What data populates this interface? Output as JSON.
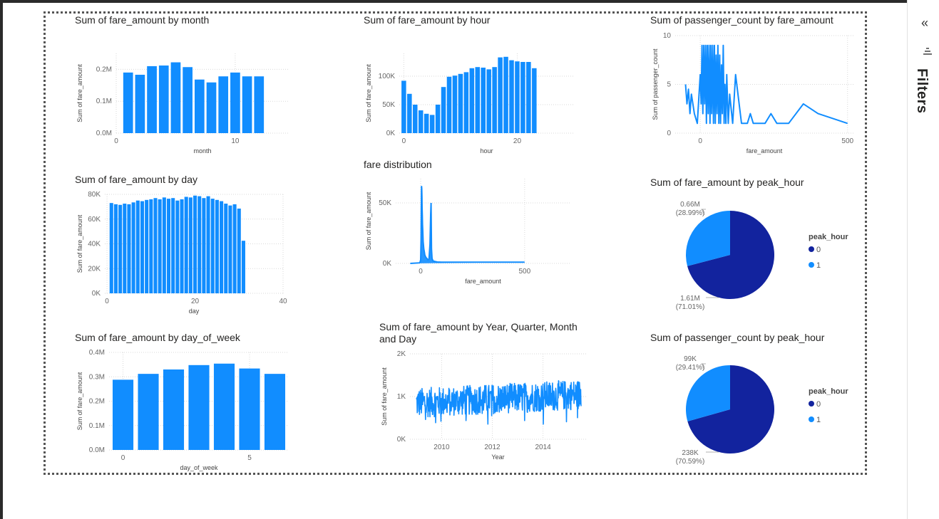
{
  "filters_pane": {
    "label": "Filters",
    "collapse_icon": "double-chevron-left-icon",
    "filter_icon": "filter-lines-icon"
  },
  "colors": {
    "bar": "#118DFF",
    "dark": "#12239E",
    "light": "#118DFF",
    "grid": "#d9d9d9"
  },
  "visuals": {
    "month": {
      "title": "Sum of fare_amount by month",
      "chart_data": {
        "type": "bar",
        "title": "Sum of fare_amount by month",
        "xlabel": "month",
        "ylabel": "Sum of fare_amount",
        "x": [
          1,
          2,
          3,
          4,
          5,
          6,
          7,
          8,
          9,
          10,
          11,
          12
        ],
        "values": [
          0.19,
          0.183,
          0.21,
          0.212,
          0.222,
          0.207,
          0.168,
          0.159,
          0.178,
          0.19,
          0.178,
          0.178
        ],
        "xlim": [
          0,
          14.5
        ],
        "ylim": [
          0,
          0.25
        ],
        "xticks": [
          {
            "v": 0,
            "label": "0"
          },
          {
            "v": 10,
            "label": "10"
          }
        ],
        "yticks": [
          {
            "v": 0,
            "label": "0.0M"
          },
          {
            "v": 0.1,
            "label": "0.1M"
          },
          {
            "v": 0.2,
            "label": "0.2M"
          }
        ]
      }
    },
    "hour": {
      "title": "Sum of fare_amount by hour",
      "chart_data": {
        "type": "bar",
        "title": "Sum of fare_amount by hour",
        "xlabel": "hour",
        "ylabel": "Sum of fare_amount",
        "x": [
          0,
          1,
          2,
          3,
          4,
          5,
          6,
          7,
          8,
          9,
          10,
          11,
          12,
          13,
          14,
          15,
          16,
          17,
          18,
          19,
          20,
          21,
          22,
          23
        ],
        "values": [
          92000,
          69000,
          50000,
          40000,
          34000,
          32000,
          50000,
          81000,
          99000,
          101000,
          104000,
          107000,
          114000,
          116000,
          115000,
          112000,
          116000,
          133000,
          134000,
          128000,
          126000,
          125000,
          125000,
          114000
        ],
        "xlim": [
          -0.8,
          30
        ],
        "ylim": [
          0,
          140000
        ],
        "xticks": [
          {
            "v": 0,
            "label": "0"
          },
          {
            "v": 20,
            "label": "20"
          }
        ],
        "yticks": [
          {
            "v": 0,
            "label": "0K"
          },
          {
            "v": 50000,
            "label": "50K"
          },
          {
            "v": 100000,
            "label": "100K"
          }
        ]
      }
    },
    "passenger_fare": {
      "title": "Sum of passenger_count by fare_amount",
      "chart_data": {
        "type": "line",
        "title": "Sum of passenger_count by fare_amount",
        "xlabel": "fare_amount",
        "ylabel": "Sum of passenger_count",
        "x": [
          -50,
          -45,
          -40,
          -35,
          -30,
          -20,
          -10,
          0,
          3,
          6,
          9,
          12,
          15,
          18,
          21,
          24,
          27,
          30,
          33,
          36,
          39,
          42,
          45,
          48,
          51,
          54,
          57,
          60,
          63,
          66,
          69,
          72,
          75,
          78,
          81,
          84,
          87,
          90,
          95,
          100,
          110,
          120,
          140,
          160,
          170,
          180,
          200,
          220,
          240,
          260,
          300,
          350,
          400,
          450,
          500
        ],
        "values": [
          5,
          3,
          4.5,
          2,
          4,
          2,
          1,
          6,
          3,
          9,
          2,
          9,
          3,
          9,
          1,
          9,
          2,
          9,
          1,
          9,
          2,
          9,
          1,
          9,
          1,
          8,
          2,
          9,
          1,
          8,
          1,
          7,
          2,
          9,
          1,
          5,
          1,
          6,
          1,
          4,
          1,
          6,
          1,
          1,
          2,
          1,
          1,
          1,
          2,
          1,
          1,
          3,
          2,
          1.5,
          1
        ],
        "xlim": [
          -85,
          520
        ],
        "ylim": [
          0,
          10
        ],
        "xticks": [
          {
            "v": 0,
            "label": "0"
          },
          {
            "v": 500,
            "label": "500"
          }
        ],
        "yticks": [
          {
            "v": 0,
            "label": "0"
          },
          {
            "v": 5,
            "label": "5"
          },
          {
            "v": 10,
            "label": "10"
          }
        ]
      }
    },
    "day": {
      "title": "Sum of fare_amount by day",
      "chart_data": {
        "type": "bar",
        "title": "Sum of fare_amount by day",
        "xlabel": "day",
        "ylabel": "Sum of fare_amount",
        "x": [
          1,
          2,
          3,
          4,
          5,
          6,
          7,
          8,
          9,
          10,
          11,
          12,
          13,
          14,
          15,
          16,
          17,
          18,
          19,
          20,
          21,
          22,
          23,
          24,
          25,
          26,
          27,
          28,
          29,
          30,
          31
        ],
        "values": [
          73000,
          72000,
          71500,
          72500,
          72000,
          73500,
          75000,
          74500,
          75500,
          76000,
          77000,
          76000,
          77500,
          76500,
          77000,
          75000,
          76000,
          78000,
          77500,
          79000,
          78500,
          77000,
          78500,
          76500,
          75500,
          74500,
          72500,
          71000,
          72000,
          68500,
          42500
        ],
        "xlim": [
          -0.5,
          40
        ],
        "ylim": [
          0,
          80000
        ],
        "xticks": [
          {
            "v": 0,
            "label": "0"
          },
          {
            "v": 20,
            "label": "20"
          },
          {
            "v": 40,
            "label": "40"
          }
        ],
        "yticks": [
          {
            "v": 0,
            "label": "0K"
          },
          {
            "v": 20000,
            "label": "20K"
          },
          {
            "v": 40000,
            "label": "40K"
          },
          {
            "v": 60000,
            "label": "60K"
          },
          {
            "v": 80000,
            "label": "80K"
          }
        ]
      }
    },
    "fare_dist": {
      "title": "fare distribution",
      "chart_data": {
        "type": "line",
        "title": "fare distribution",
        "xlabel": "fare_amount",
        "ylabel": "Sum of fare_amount",
        "x": [
          -50,
          -5,
          -2,
          0,
          2,
          3,
          4,
          5,
          6,
          7,
          8,
          9,
          10,
          12,
          15,
          18,
          20,
          25,
          30,
          35,
          40,
          45,
          48,
          50,
          52,
          55,
          60,
          70,
          80,
          100,
          200,
          300,
          400,
          500
        ],
        "values": [
          0,
          500,
          1500,
          3000,
          20000,
          45000,
          64000,
          62000,
          55000,
          46000,
          40000,
          32000,
          28000,
          18000,
          12000,
          9000,
          7000,
          5000,
          4000,
          3000,
          3500,
          16000,
          40000,
          50000,
          12000,
          4000,
          2000,
          1500,
          1200,
          1000,
          1000,
          1000,
          1000,
          1000
        ],
        "xlim": [
          -120,
          720
        ],
        "ylim": [
          0,
          70000
        ],
        "xticks": [
          {
            "v": 0,
            "label": "0"
          },
          {
            "v": 500,
            "label": "500"
          }
        ],
        "yticks": [
          {
            "v": 0,
            "label": "0K"
          },
          {
            "v": 50000,
            "label": "50K"
          }
        ]
      }
    },
    "peak_fare": {
      "title": "Sum of fare_amount by peak_hour",
      "chart_data": {
        "type": "pie",
        "title": "Sum of fare_amount by peak_hour",
        "legend_title": "peak_hour",
        "categories": [
          "0",
          "1"
        ],
        "values": [
          1.61,
          0.66
        ],
        "labels": [
          {
            "value": "1.61M",
            "pct": "(71.01%)"
          },
          {
            "value": "0.66M",
            "pct": "(28.99%)"
          }
        ]
      }
    },
    "day_of_week": {
      "title": "Sum of fare_amount by day_of_week",
      "chart_data": {
        "type": "bar",
        "title": "Sum of fare_amount by day_of_week",
        "xlabel": "day_of_week",
        "ylabel": "Sum of fare_amount",
        "x": [
          0,
          1,
          2,
          3,
          4,
          5,
          6
        ],
        "values": [
          0.288,
          0.312,
          0.33,
          0.348,
          0.354,
          0.334,
          0.312
        ],
        "xlim": [
          -0.55,
          6.55
        ],
        "ylim": [
          0,
          0.4
        ],
        "xticks": [
          {
            "v": 0,
            "label": "0"
          },
          {
            "v": 5,
            "label": "5"
          }
        ],
        "yticks": [
          {
            "v": 0,
            "label": "0.0M"
          },
          {
            "v": 0.1,
            "label": "0.1M"
          },
          {
            "v": 0.2,
            "label": "0.2M"
          },
          {
            "v": 0.3,
            "label": "0.3M"
          },
          {
            "v": 0.4,
            "label": "0.4M"
          }
        ]
      }
    },
    "ymqd": {
      "title": "Sum of fare_amount by Year, Quarter, Month and Day",
      "chart_data": {
        "type": "line",
        "title": "Sum of fare_amount by Year, Quarter, Month and Day",
        "xlabel": "Year",
        "ylabel": "Sum of fare_amount",
        "x_start": 2009.0,
        "x_end": 2015.5,
        "y_min": 50,
        "y_max": 1650,
        "y_mean_start": 850,
        "y_mean_end": 1050,
        "xlim": [
          2008.75,
          2015.7
        ],
        "ylim": [
          0,
          2000
        ],
        "xticks": [
          {
            "v": 2010,
            "label": "2010"
          },
          {
            "v": 2012,
            "label": "2012"
          },
          {
            "v": 2014,
            "label": "2014"
          }
        ],
        "yticks": [
          {
            "v": 0,
            "label": "0K"
          },
          {
            "v": 1000,
            "label": "1K"
          },
          {
            "v": 2000,
            "label": "2K"
          }
        ]
      }
    },
    "peak_passenger": {
      "title": "Sum of passenger_count by peak_hour",
      "chart_data": {
        "type": "pie",
        "title": "Sum of passenger_count by peak_hour",
        "legend_title": "peak_hour",
        "categories": [
          "0",
          "1"
        ],
        "values": [
          238,
          99
        ],
        "labels": [
          {
            "value": "238K",
            "pct": "(70.59%)"
          },
          {
            "value": "99K",
            "pct": "(29.41%)"
          }
        ]
      }
    }
  }
}
